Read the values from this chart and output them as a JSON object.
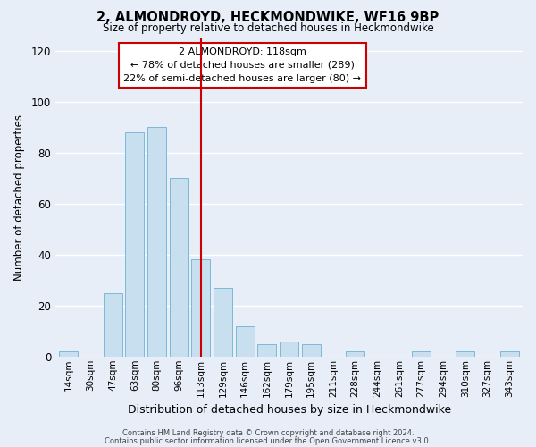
{
  "title": "2, ALMONDROYD, HECKMONDWIKE, WF16 9BP",
  "subtitle": "Size of property relative to detached houses in Heckmondwike",
  "xlabel": "Distribution of detached houses by size in Heckmondwike",
  "ylabel": "Number of detached properties",
  "bar_labels": [
    "14sqm",
    "30sqm",
    "47sqm",
    "63sqm",
    "80sqm",
    "96sqm",
    "113sqm",
    "129sqm",
    "146sqm",
    "162sqm",
    "179sqm",
    "195sqm",
    "211sqm",
    "228sqm",
    "244sqm",
    "261sqm",
    "277sqm",
    "294sqm",
    "310sqm",
    "327sqm",
    "343sqm"
  ],
  "bar_values": [
    2,
    0,
    25,
    88,
    90,
    70,
    38,
    27,
    12,
    5,
    6,
    5,
    0,
    2,
    0,
    0,
    2,
    0,
    2,
    0,
    2
  ],
  "bar_color": "#c8dff0",
  "bar_edge_color": "#7db8d8",
  "vline_x_index": 6,
  "vline_color": "#cc0000",
  "annotation_title": "2 ALMONDROYD: 118sqm",
  "annotation_line1": "← 78% of detached houses are smaller (289)",
  "annotation_line2": "22% of semi-detached houses are larger (80) →",
  "annotation_box_color": "#ffffff",
  "annotation_box_edge": "#cc0000",
  "ylim": [
    0,
    125
  ],
  "yticks": [
    0,
    20,
    40,
    60,
    80,
    100,
    120
  ],
  "footer1": "Contains HM Land Registry data © Crown copyright and database right 2024.",
  "footer2": "Contains public sector information licensed under the Open Government Licence v3.0.",
  "bg_color": "#e8eef8",
  "plot_bg_color": "#e8eef8"
}
